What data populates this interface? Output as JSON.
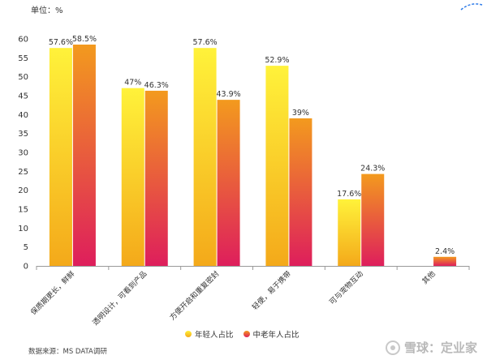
{
  "unit_label": "单位：%",
  "source": "数据来源：MS DATA调研",
  "watermark": {
    "text": "雪球：定业家",
    "icon": "snowball-icon"
  },
  "colors": {
    "young_top": "#FFF23A",
    "young_bottom": "#F4A91A",
    "old_top": "#F39A1E",
    "old_bottom": "#DE1E5C",
    "axis_text": "#333333",
    "grid": "#E2E2E2"
  },
  "chart_data": {
    "type": "bar",
    "categories": [
      "保质期更长，鲜鲜",
      "透明设计，可看到产品",
      "方便开启和重复密封",
      "轻便，易于携带",
      "可与宠物互动",
      "其他"
    ],
    "series": [
      {
        "name": "年轻人占比",
        "values": [
          57.6,
          47,
          57.6,
          52.9,
          17.6,
          null
        ]
      },
      {
        "name": "中老年人占比",
        "values": [
          58.5,
          46.3,
          43.9,
          39,
          24.3,
          2.4
        ]
      }
    ],
    "data_labels": [
      [
        "57.6%",
        "47%",
        "57.6%",
        "52.9%",
        "17.6%",
        ""
      ],
      [
        "58.5%",
        "46.3%",
        "43.9%",
        "39%",
        "24.3%",
        "2.4%"
      ]
    ],
    "yticks": [
      0,
      5,
      10,
      15,
      20,
      25,
      30,
      35,
      40,
      45,
      50,
      55,
      60
    ],
    "ylim": [
      0,
      60
    ],
    "legend_position": "bottom-center",
    "grid": false
  }
}
